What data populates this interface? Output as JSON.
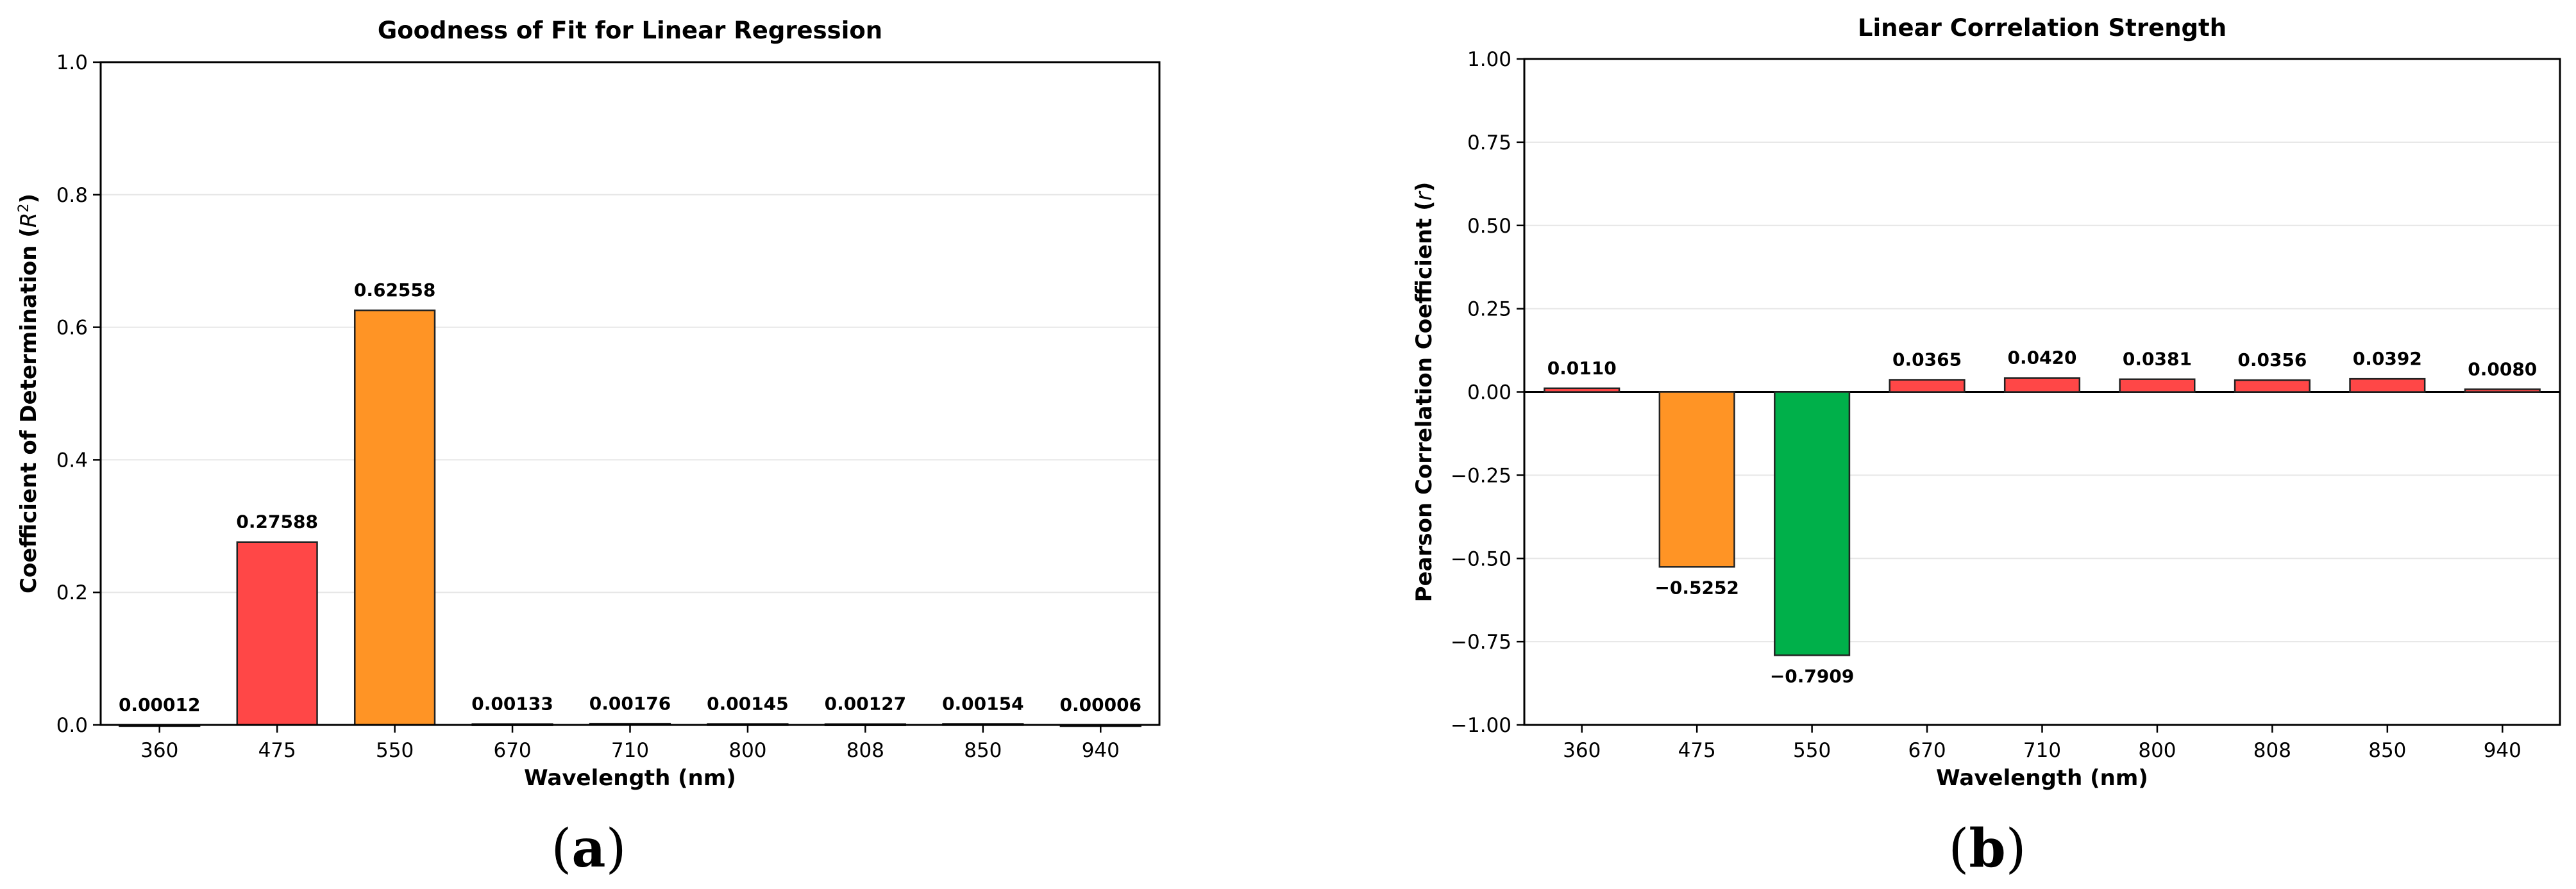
{
  "chart_data": [
    {
      "type": "bar",
      "panel_label": "a",
      "title": "Goodness of Fit for Linear Regression",
      "xlabel": "Wavelength (nm)",
      "ylabel": "Coefficient of Determination (",
      "ylabel_symbol": "R",
      "ylabel_superscript": "2",
      "ylabel_close": ")",
      "categories": [
        "360",
        "475",
        "550",
        "670",
        "710",
        "800",
        "808",
        "850",
        "940"
      ],
      "values": [
        0.00012,
        0.27588,
        0.62558,
        0.00133,
        0.00176,
        0.00145,
        0.00127,
        0.00154,
        6e-05
      ],
      "data_labels": [
        "0.00012",
        "0.27588",
        "0.62558",
        "0.00133",
        "0.00176",
        "0.00145",
        "0.00127",
        "0.00154",
        "0.00006"
      ],
      "colors": [
        "#E84A4A",
        "#FF4747",
        "#FF9425",
        "#E84A4A",
        "#E84A4A",
        "#E84A4A",
        "#E84A4A",
        "#E84A4A",
        "#E84A4A"
      ],
      "ylim": [
        0,
        1.0
      ],
      "yticks": [
        0.0,
        0.2,
        0.4,
        0.6,
        0.8,
        1.0
      ],
      "ytick_labels": [
        "0.0",
        "0.2",
        "0.4",
        "0.6",
        "0.8",
        "1.0"
      ],
      "grid": "horizontal"
    },
    {
      "type": "bar",
      "panel_label": "b",
      "title": "Linear Correlation Strength",
      "xlabel": "Wavelength (nm)",
      "ylabel": "Pearson Correlation Coefficient (",
      "ylabel_symbol": "r",
      "ylabel_close": ")",
      "categories": [
        "360",
        "475",
        "550",
        "670",
        "710",
        "800",
        "808",
        "850",
        "940"
      ],
      "values": [
        0.011,
        -0.5252,
        -0.7909,
        0.0365,
        0.042,
        0.0381,
        0.0356,
        0.0392,
        0.008
      ],
      "data_labels": [
        "0.0110",
        "−0.5252",
        "−0.7909",
        "0.0365",
        "0.0420",
        "0.0381",
        "0.0356",
        "0.0392",
        "0.0080"
      ],
      "colors": [
        "#FF4747",
        "#FF9425",
        "#00B04A",
        "#FF4747",
        "#FF4747",
        "#FF4747",
        "#FF4747",
        "#FF4747",
        "#FF4747"
      ],
      "ylim": [
        -1.0,
        1.0
      ],
      "yticks": [
        -1.0,
        -0.75,
        -0.5,
        -0.25,
        0.0,
        0.25,
        0.5,
        0.75,
        1.0
      ],
      "ytick_labels": [
        "−1.00",
        "−0.75",
        "−0.50",
        "−0.25",
        "0.00",
        "0.25",
        "0.50",
        "0.75",
        "1.00"
      ],
      "grid": "horizontal",
      "zero_line": true
    }
  ]
}
